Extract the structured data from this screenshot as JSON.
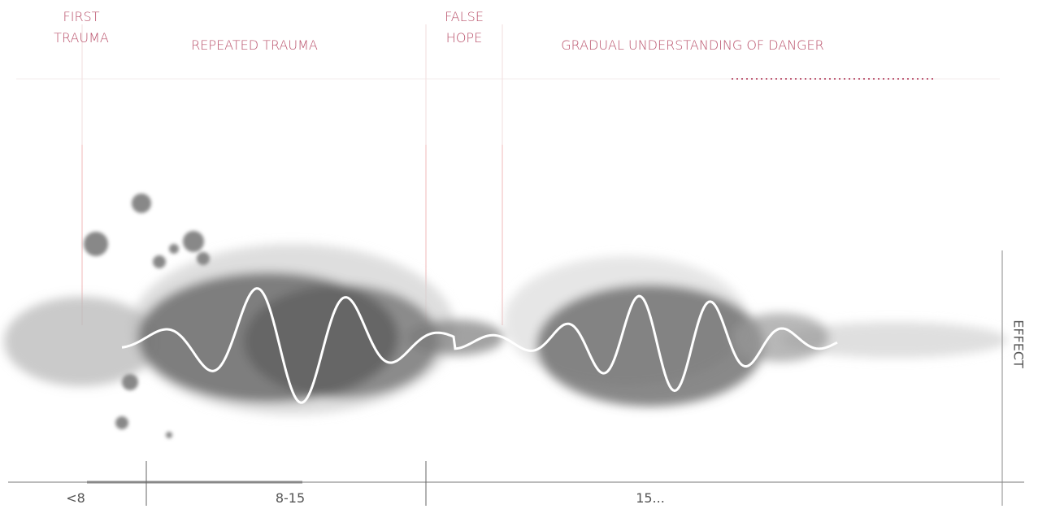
{
  "phases": [
    {
      "label": "FIRST TRAUMA"
    },
    {
      "label": "REPEATED TRAUMA"
    },
    {
      "label": "FALSE HOPE"
    },
    {
      "label": "GRADUAL UNDERSTANDING OF DANGER"
    }
  ],
  "age_axis": {
    "labels": [
      "<8",
      "8-15",
      "15..."
    ]
  },
  "effect_axis": {
    "label": "EFFECT"
  }
}
